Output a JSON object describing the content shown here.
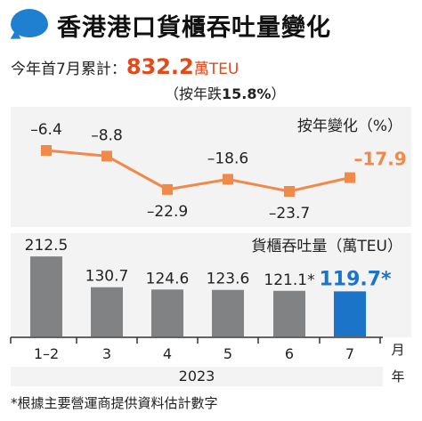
{
  "title": "香港港口貨櫃吞吐量變化",
  "summary": {
    "prefix": "今年首7月累計：",
    "total": "832.2",
    "total_unit": "萬TEU",
    "yoy_prefix": "（按年跌",
    "yoy_value": "15.8%",
    "yoy_suffix": "）"
  },
  "line_panel_label": "按年變化（%）",
  "bar_panel_label": "貨櫃吞吐量（萬TEU）",
  "x_axis_unit_top": "月",
  "x_axis_unit_bottom": "年",
  "year_label": "2023",
  "footnote": "*根據主要營運商提供資料估計數字",
  "colors": {
    "line": "#f08a4b",
    "bar": "#808284",
    "bar_highlight": "#1b74c8",
    "accent_text": "#e24a1b",
    "highlight_text": "#1b74c8"
  },
  "chart_data": [
    {
      "type": "line",
      "categories": [
        "1–2",
        "3",
        "4",
        "5",
        "6",
        "7"
      ],
      "values": [
        -6.4,
        -8.8,
        -22.9,
        -18.6,
        -23.7,
        -17.9
      ],
      "labels": [
        "–6.4",
        "–8.8",
        "–22.9",
        "–18.6",
        "–23.7",
        "–17.9"
      ],
      "ylabel": "按年變化（%）",
      "highlight_last": true
    },
    {
      "type": "bar",
      "categories": [
        "1–2",
        "3",
        "4",
        "5",
        "6",
        "7"
      ],
      "values": [
        212.5,
        130.7,
        124.6,
        123.6,
        121.1,
        119.7
      ],
      "labels": [
        "212.5",
        "130.7",
        "124.6",
        "123.6",
        "121.1*",
        "119.7*"
      ],
      "ylabel": "貨櫃吞吐量（萬TEU）",
      "highlight_last": true
    }
  ]
}
